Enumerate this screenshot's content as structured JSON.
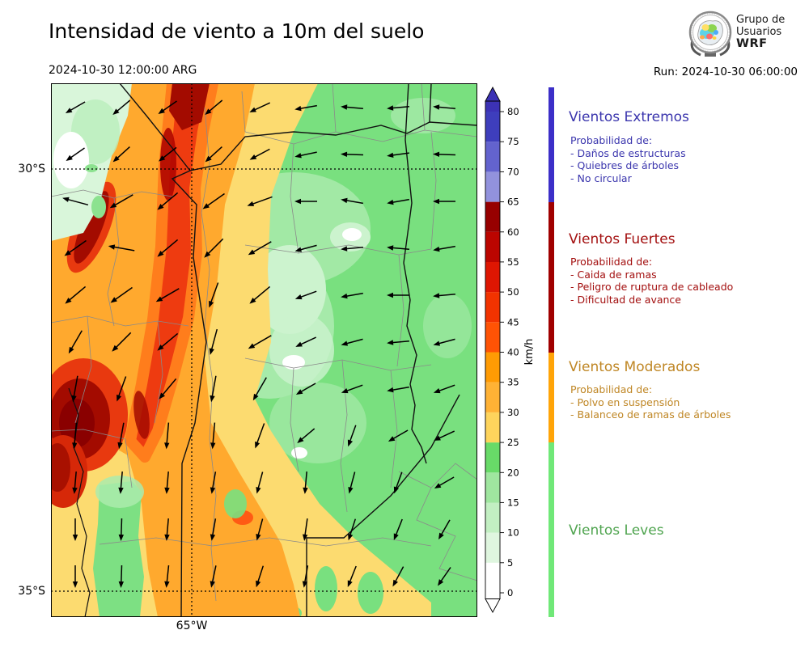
{
  "header": {
    "title": "Intensidad de viento a 10m del suelo",
    "valid_time": "2024-10-30 12:00:00 ARG",
    "run_label": "Run: 2024-10-30 06:00:00"
  },
  "logo": {
    "line1": "Grupo de",
    "line2": "Usuarios",
    "line3": "WRF"
  },
  "map": {
    "lat_labels": [
      {
        "text": "30°S"
      },
      {
        "text": "35°S"
      }
    ],
    "lon_label": "65°W",
    "arrows": [
      [
        30,
        30,
        150
      ],
      [
        87,
        30,
        140
      ],
      [
        144,
        30,
        145
      ],
      [
        201,
        30,
        140
      ],
      [
        258,
        30,
        155
      ],
      [
        315,
        30,
        170
      ],
      [
        372,
        30,
        185
      ],
      [
        429,
        30,
        175
      ],
      [
        486,
        30,
        185
      ],
      [
        30,
        88,
        145
      ],
      [
        87,
        88,
        138
      ],
      [
        144,
        88,
        142
      ],
      [
        201,
        88,
        138
      ],
      [
        258,
        88,
        152
      ],
      [
        315,
        88,
        168
      ],
      [
        372,
        88,
        182
      ],
      [
        429,
        88,
        172
      ],
      [
        486,
        88,
        182
      ],
      [
        30,
        146,
        195
      ],
      [
        87,
        146,
        150
      ],
      [
        144,
        146,
        140
      ],
      [
        201,
        146,
        145
      ],
      [
        258,
        146,
        160
      ],
      [
        315,
        146,
        180
      ],
      [
        372,
        146,
        190
      ],
      [
        429,
        146,
        170
      ],
      [
        486,
        146,
        180
      ],
      [
        30,
        204,
        145
      ],
      [
        87,
        204,
        190
      ],
      [
        144,
        204,
        140
      ],
      [
        201,
        204,
        135
      ],
      [
        258,
        204,
        150
      ],
      [
        315,
        204,
        165
      ],
      [
        372,
        204,
        175
      ],
      [
        429,
        204,
        185
      ],
      [
        486,
        204,
        170
      ],
      [
        30,
        262,
        140
      ],
      [
        87,
        262,
        145
      ],
      [
        144,
        262,
        150
      ],
      [
        201,
        262,
        110
      ],
      [
        258,
        262,
        140
      ],
      [
        315,
        262,
        160
      ],
      [
        372,
        262,
        170
      ],
      [
        429,
        262,
        180
      ],
      [
        486,
        262,
        175
      ],
      [
        30,
        320,
        120
      ],
      [
        87,
        320,
        135
      ],
      [
        144,
        320,
        140
      ],
      [
        201,
        320,
        105
      ],
      [
        258,
        320,
        150
      ],
      [
        315,
        320,
        155
      ],
      [
        372,
        320,
        165
      ],
      [
        429,
        320,
        175
      ],
      [
        486,
        320,
        165
      ],
      [
        30,
        378,
        100
      ],
      [
        87,
        378,
        110
      ],
      [
        144,
        378,
        130
      ],
      [
        201,
        378,
        100
      ],
      [
        258,
        378,
        120
      ],
      [
        315,
        378,
        150
      ],
      [
        372,
        378,
        160
      ],
      [
        429,
        378,
        170
      ],
      [
        486,
        378,
        160
      ],
      [
        30,
        436,
        95
      ],
      [
        87,
        436,
        100
      ],
      [
        144,
        436,
        95
      ],
      [
        201,
        436,
        95
      ],
      [
        258,
        436,
        110
      ],
      [
        315,
        436,
        140
      ],
      [
        372,
        436,
        110
      ],
      [
        429,
        436,
        150
      ],
      [
        486,
        436,
        155
      ],
      [
        30,
        494,
        95
      ],
      [
        87,
        494,
        95
      ],
      [
        144,
        494,
        95
      ],
      [
        201,
        494,
        100
      ],
      [
        258,
        494,
        105
      ],
      [
        315,
        494,
        95
      ],
      [
        372,
        494,
        105
      ],
      [
        429,
        494,
        110
      ],
      [
        486,
        494,
        150
      ],
      [
        30,
        552,
        90
      ],
      [
        87,
        552,
        92
      ],
      [
        144,
        552,
        95
      ],
      [
        201,
        552,
        100
      ],
      [
        258,
        552,
        105
      ],
      [
        315,
        552,
        98
      ],
      [
        372,
        552,
        108
      ],
      [
        429,
        552,
        112
      ],
      [
        486,
        552,
        120
      ],
      [
        30,
        610,
        90
      ],
      [
        87,
        610,
        92
      ],
      [
        144,
        610,
        96
      ],
      [
        201,
        610,
        102
      ],
      [
        258,
        610,
        108
      ],
      [
        315,
        610,
        100
      ],
      [
        372,
        610,
        112
      ],
      [
        429,
        610,
        118
      ],
      [
        486,
        610,
        125
      ]
    ]
  },
  "colorbar": {
    "unit": "km/h",
    "ticks": [
      0,
      5,
      10,
      15,
      20,
      25,
      30,
      35,
      40,
      45,
      50,
      55,
      60,
      65,
      70,
      75,
      80
    ],
    "segments": [
      {
        "from": -0.95,
        "to": 0,
        "color": "#ffffff"
      },
      {
        "from": 0,
        "to": 5,
        "color": "#ffffff"
      },
      {
        "from": 5,
        "to": 10,
        "color": "#dff6df"
      },
      {
        "from": 10,
        "to": 15,
        "color": "#c2efc2"
      },
      {
        "from": 15,
        "to": 20,
        "color": "#9fe69f"
      },
      {
        "from": 20,
        "to": 25,
        "color": "#68da68"
      },
      {
        "from": 25,
        "to": 30,
        "color": "#fed45c"
      },
      {
        "from": 30,
        "to": 35,
        "color": "#ffb235"
      },
      {
        "from": 35,
        "to": 40,
        "color": "#ff9b04"
      },
      {
        "from": 40,
        "to": 45,
        "color": "#ff5305"
      },
      {
        "from": 45,
        "to": 50,
        "color": "#f23300"
      },
      {
        "from": 50,
        "to": 55,
        "color": "#de1602"
      },
      {
        "from": 55,
        "to": 60,
        "color": "#bb0500"
      },
      {
        "from": 60,
        "to": 65,
        "color": "#970000"
      },
      {
        "from": 65,
        "to": 70,
        "color": "#9292dd"
      },
      {
        "from": 70,
        "to": 75,
        "color": "#6363ce"
      },
      {
        "from": 75,
        "to": 80,
        "color": "#3e3ebc"
      },
      {
        "from": 80,
        "to": 81.75,
        "color": "#3c32b5"
      }
    ],
    "top_arrow_color": "#3c32b5",
    "bottom_arrow_color": "#ffffff"
  },
  "categories": [
    {
      "title": "Vientos Extremos",
      "text_color": "#3a35ad",
      "bar_color": "#3c2fc8",
      "range": [
        65,
        88
      ],
      "prob_label": "Probabilidad de:",
      "items": [
        "- Daños de estructuras",
        "- Quiebres de árboles",
        "- No circular"
      ]
    },
    {
      "title": "Vientos Fuertes",
      "text_color": "#a30f0f",
      "bar_color": "#a00000",
      "range": [
        40,
        65
      ],
      "prob_label": "Probabilidad de:",
      "items": [
        "- Caida de ramas",
        "- Peligro de ruptura de cableado",
        "- Dificultad de avance"
      ]
    },
    {
      "title": "Vientos Moderados",
      "text_color": "#bf8624",
      "bar_color": "#ffa408",
      "range": [
        25,
        40
      ],
      "prob_label": "Probabilidad de:",
      "items": [
        "- Polvo en suspensión",
        "- Balanceo de ramas de árboles"
      ]
    },
    {
      "title": "Vientos Leves",
      "text_color": "#4fa44f",
      "bar_color": "#70e878",
      "range": [
        -14,
        25
      ],
      "prob_label": "",
      "items": []
    }
  ]
}
